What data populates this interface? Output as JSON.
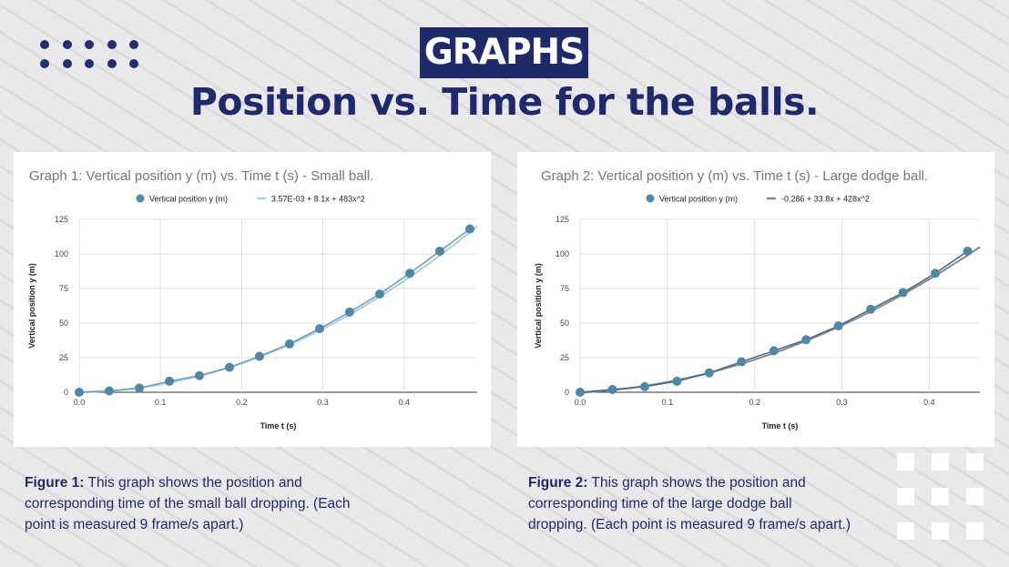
{
  "header": {
    "tag": "GRAPHS",
    "title": "Position vs. Time for the balls."
  },
  "colors": {
    "navy": "#1f2a6b",
    "point": "#4f87a6",
    "trend1": "#a8cfe0",
    "trend2": "#888888",
    "grid": "#e0e0e0"
  },
  "chart_data": [
    {
      "type": "scatter",
      "title": "Graph 1: Vertical position y (m) vs. Time t (s) - Small ball.",
      "xlabel": "Time t (s)",
      "ylabel": "Vertical position y (m)",
      "xlim": [
        0,
        0.49
      ],
      "ylim": [
        0,
        125
      ],
      "xticks": [
        0.0,
        0.1,
        0.2,
        0.3,
        0.4
      ],
      "xtick_labels": [
        "0.0",
        "0.1",
        "0.2",
        "0.3",
        "0.4"
      ],
      "yticks": [
        0,
        25,
        50,
        75,
        100,
        125
      ],
      "grid": true,
      "legend_position": "top",
      "series": [
        {
          "name": "Vertical position y (m)",
          "x": [
            0,
            0.037,
            0.074,
            0.111,
            0.148,
            0.185,
            0.222,
            0.259,
            0.296,
            0.333,
            0.37,
            0.407,
            0.444,
            0.481
          ],
          "y": [
            0,
            1,
            3,
            8,
            12,
            18,
            26,
            35,
            46,
            58,
            71,
            86,
            102,
            118
          ]
        }
      ],
      "trendline": {
        "label": "3.57E-03 + 8.1x + 483x^2",
        "coefficients": [
          0.00357,
          8.1,
          483
        ]
      }
    },
    {
      "type": "scatter",
      "title": "Graph 2: Vertical position y (m) vs. Time t (s) - Large dodge ball.",
      "xlabel": "Time t (s)",
      "ylabel": "Vertical position y (m)",
      "xlim": [
        0,
        0.458
      ],
      "ylim": [
        0,
        125
      ],
      "xticks": [
        0.0,
        0.1,
        0.2,
        0.3,
        0.4
      ],
      "xtick_labels": [
        "0.0",
        "0.1",
        "0.2",
        "0.3",
        "0.4"
      ],
      "yticks": [
        0,
        25,
        50,
        75,
        100,
        125
      ],
      "grid": true,
      "legend_position": "top",
      "series": [
        {
          "name": "Vertical position y (m)",
          "x": [
            0,
            0.037,
            0.074,
            0.111,
            0.148,
            0.185,
            0.222,
            0.259,
            0.296,
            0.333,
            0.37,
            0.407,
            0.444
          ],
          "y": [
            0,
            2,
            4,
            8,
            14,
            22,
            30,
            38,
            48,
            60,
            72,
            86,
            102
          ]
        }
      ],
      "trendline": {
        "label": "-0.286 + 33.8x + 428x^2",
        "coefficients": [
          -0.286,
          33.8,
          428
        ]
      }
    }
  ],
  "captions": [
    {
      "label": "Figure 1:",
      "text": " This graph shows the position and corresponding time of the small ball dropping. (Each point is measured 9 frame/s apart.)"
    },
    {
      "label": "Figure 2:",
      "text": " This graph shows the position and corresponding time of the large dodge ball dropping. (Each point is measured 9 frame/s apart.)"
    }
  ]
}
